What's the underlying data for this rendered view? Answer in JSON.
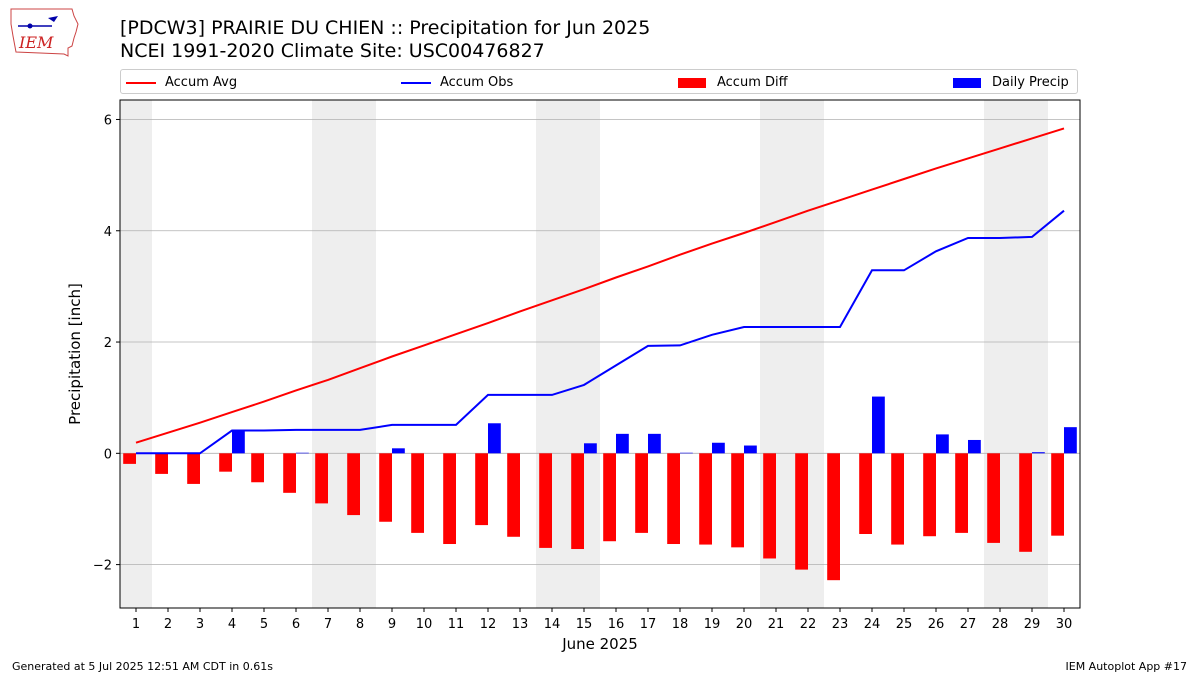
{
  "header": {
    "title_line1": "[PDCW3] PRAIRIE DU CHIEN :: Precipitation for Jun 2025",
    "title_line2": "NCEI 1991-2020 Climate Site: USC00476827",
    "logo_text": "IEM"
  },
  "footer": {
    "generated": "Generated at 5 Jul 2025 12:51 AM CDT in 0.61s",
    "app": "IEM Autoplot App #17"
  },
  "colors": {
    "accum_avg": "#ff0000",
    "accum_obs": "#0000ff",
    "accum_diff": "#ff0000",
    "daily_precip": "#0000ff",
    "weekend_shade": "#eeeeee",
    "grid": "#b0b0b0"
  },
  "chart_data": {
    "type": "bar",
    "xlabel": "June 2025",
    "ylabel": "Precipitation [inch]",
    "xlim": [
      0.5,
      30.5
    ],
    "ylim": [
      -2.78,
      6.35
    ],
    "yticks": [
      -2,
      0,
      2,
      4,
      6
    ],
    "grid": "horizontal",
    "legend_position": "top",
    "days": [
      1,
      2,
      3,
      4,
      5,
      6,
      7,
      8,
      9,
      10,
      11,
      12,
      13,
      14,
      15,
      16,
      17,
      18,
      19,
      20,
      21,
      22,
      23,
      24,
      25,
      26,
      27,
      28,
      29,
      30
    ],
    "weekend_days": [
      1,
      7,
      8,
      14,
      15,
      21,
      22,
      28,
      29
    ],
    "series": [
      {
        "name": "Accum Avg",
        "kind": "line",
        "values": [
          0.19,
          0.37,
          0.55,
          0.74,
          0.93,
          1.13,
          1.32,
          1.53,
          1.74,
          1.94,
          2.14,
          2.34,
          2.55,
          2.75,
          2.95,
          3.16,
          3.36,
          3.57,
          3.77,
          3.96,
          4.16,
          4.36,
          4.55,
          4.74,
          4.93,
          5.12,
          5.3,
          5.48,
          5.66,
          5.84
        ]
      },
      {
        "name": "Accum Obs",
        "kind": "line",
        "values": [
          0.0,
          0.0,
          0.0,
          0.41,
          0.41,
          0.42,
          0.42,
          0.42,
          0.51,
          0.51,
          0.51,
          1.05,
          1.05,
          1.05,
          1.23,
          1.58,
          1.93,
          1.94,
          2.13,
          2.27,
          2.27,
          2.27,
          2.27,
          3.29,
          3.29,
          3.63,
          3.87,
          3.87,
          3.89,
          4.36
        ]
      },
      {
        "name": "Accum Diff",
        "kind": "bar",
        "values": [
          -0.19,
          -0.37,
          -0.55,
          -0.33,
          -0.52,
          -0.71,
          -0.9,
          -1.11,
          -1.23,
          -1.43,
          -1.63,
          -1.29,
          -1.5,
          -1.7,
          -1.72,
          -1.58,
          -1.43,
          -1.63,
          -1.64,
          -1.69,
          -1.89,
          -2.09,
          -2.28,
          -1.45,
          -1.64,
          -1.49,
          -1.43,
          -1.61,
          -1.77,
          -1.48
        ]
      },
      {
        "name": "Daily Precip",
        "kind": "bar",
        "values": [
          0.0,
          0.0,
          0.0,
          0.41,
          0.0,
          0.01,
          0.0,
          0.0,
          0.09,
          0.0,
          0.0,
          0.54,
          0.0,
          0.0,
          0.18,
          0.35,
          0.35,
          0.01,
          0.19,
          0.14,
          0.0,
          0.0,
          0.0,
          1.02,
          0.0,
          0.34,
          0.24,
          0.0,
          0.02,
          0.47
        ]
      }
    ]
  }
}
